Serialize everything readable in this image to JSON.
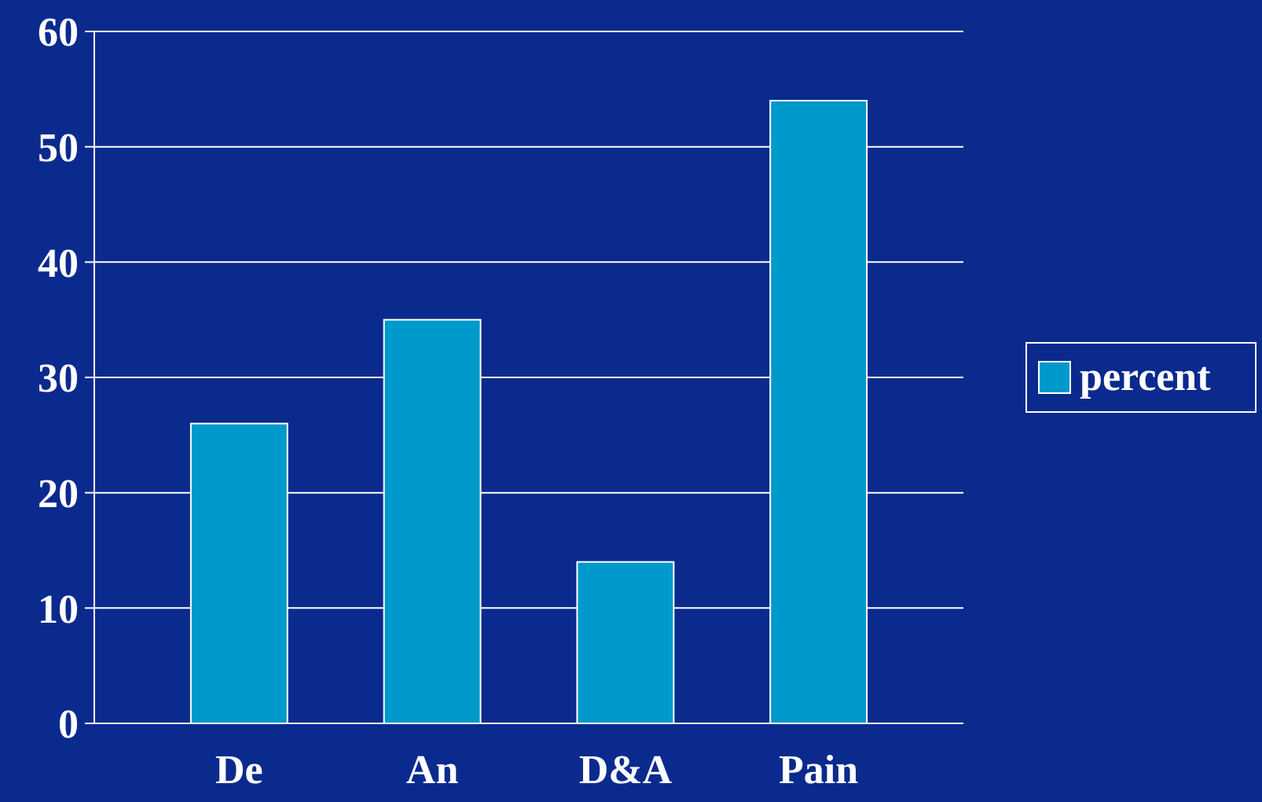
{
  "chart_data": {
    "type": "bar",
    "categories": [
      "De",
      "An",
      "D&A",
      "Pain"
    ],
    "series": [
      {
        "name": "percent",
        "color": "#0099cc",
        "values": [
          26,
          35,
          14,
          54
        ]
      }
    ],
    "ylim": [
      0,
      60
    ],
    "yticks": [
      0,
      10,
      20,
      30,
      40,
      50,
      60
    ],
    "grid": "y",
    "legend": "right"
  }
}
